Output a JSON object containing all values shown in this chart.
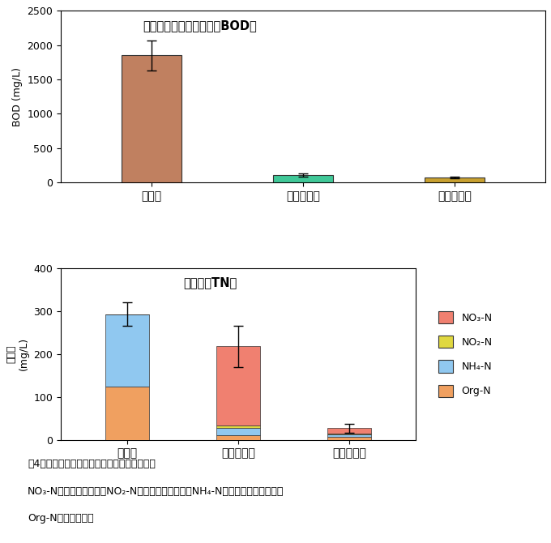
{
  "bod_title": "生物化学的酸素要求量（BOD）",
  "bod_ylabel": "BOD (mg/L)",
  "bod_categories": [
    "処理前",
    "活性汚泥法",
    "炭素繊維法"
  ],
  "bod_values": [
    1850,
    110,
    75
  ],
  "bod_errors": [
    220,
    22,
    12
  ],
  "bod_colors": [
    "#c08060",
    "#40c898",
    "#c8a030"
  ],
  "bod_ylim": [
    0,
    2500
  ],
  "bod_yticks": [
    0,
    500,
    1000,
    1500,
    2000,
    2500
  ],
  "tn_title": "全窒素（TN）",
  "tn_ylabel_line1": "全窒素",
  "tn_ylabel_line2": "（mg/L）",
  "tn_categories": [
    "処理前",
    "活性汚泥法",
    "炭素繊維法"
  ],
  "tn_ylim": [
    0,
    400
  ],
  "tn_yticks": [
    0,
    100,
    200,
    300,
    400
  ],
  "tn_error_pre": 28,
  "tn_error_act": 48,
  "tn_error_car": 10,
  "tn_org_n": [
    125,
    10,
    7
  ],
  "tn_nh4_n": [
    168,
    18,
    5
  ],
  "tn_no2_n": [
    0,
    5,
    3
  ],
  "tn_no3_n": [
    0,
    185,
    12
  ],
  "color_org_n": "#f0a060",
  "color_nh4_n": "#90c8f0",
  "color_no2_n": "#e0d840",
  "color_no3_n": "#f08070",
  "legend_labels": [
    "NO₃-N",
    "NO₂-N",
    "NH₄-N",
    "Org-N"
  ],
  "legend_colors": [
    "#f08070",
    "#e0d840",
    "#90c8f0",
    "#f0a060"
  ],
  "caption_line1": "図4　活性汚泥法と炭素繊維法の浄化処理性能",
  "caption_line2": "NO₃-N：硝酸性窒素，　NO₂-N：亜硝酸性窒素，　NH₄-N：アンモニア性窒素，",
  "caption_line3": "Org-N：有機性窒素",
  "background": "#ffffff"
}
